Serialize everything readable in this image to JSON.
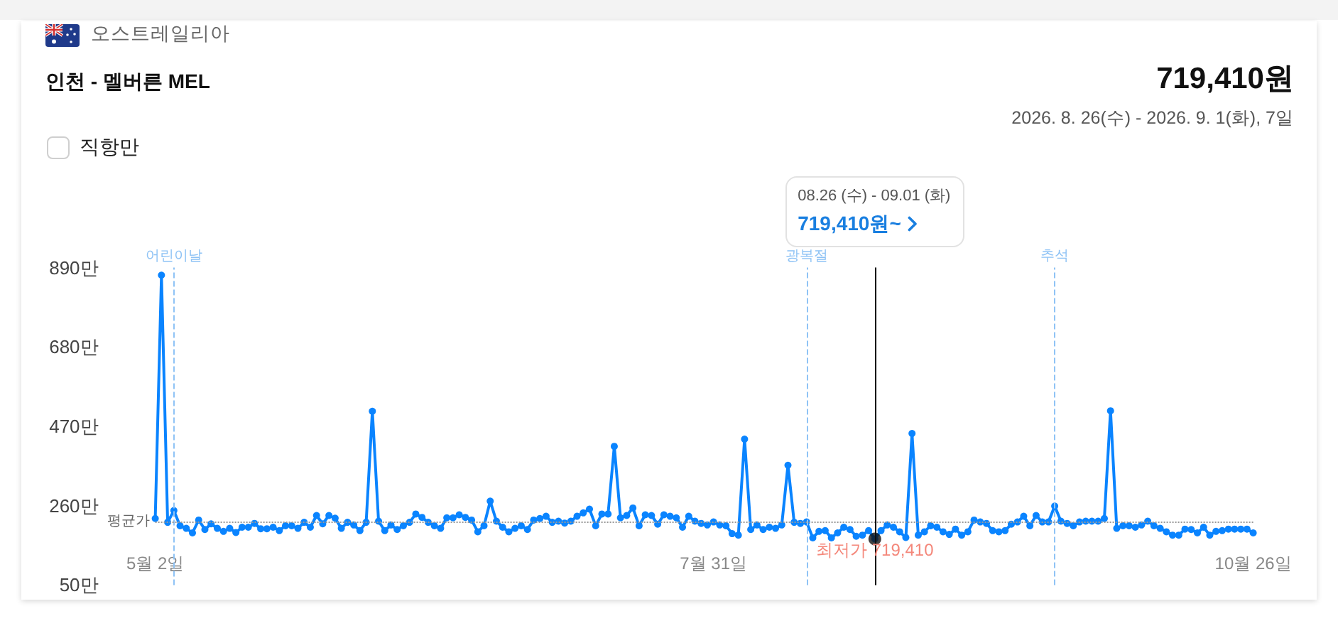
{
  "chart_data": {
    "type": "line",
    "title": "인천 - 멜버른 MEL",
    "subtitle": "2026. 8. 26(수) - 2026. 9. 1(화), 7일",
    "annotations": [
      "오스트레일리아",
      "719,410원",
      "직항만",
      "08.26 (수) - 09.01 (화)",
      "719,410원~",
      "최저가 719,410"
    ],
    "x": [
      "2026-05-02",
      "2026-05-03",
      "2026-05-04",
      "2026-05-05",
      "2026-05-06",
      "2026-05-07",
      "2026-05-08",
      "2026-05-09",
      "2026-05-10",
      "2026-05-11",
      "2026-05-12",
      "2026-05-13",
      "2026-05-14",
      "2026-05-15",
      "2026-05-16",
      "2026-05-17",
      "2026-05-18",
      "2026-05-19",
      "2026-05-20",
      "2026-05-21",
      "2026-05-22",
      "2026-05-23",
      "2026-05-24",
      "2026-05-25",
      "2026-05-26",
      "2026-05-27",
      "2026-05-28",
      "2026-05-29",
      "2026-05-30",
      "2026-05-31",
      "2026-06-01",
      "2026-06-02",
      "2026-06-03",
      "2026-06-04",
      "2026-06-05",
      "2026-06-06",
      "2026-06-07",
      "2026-06-08",
      "2026-06-09",
      "2026-06-10",
      "2026-06-11",
      "2026-06-12",
      "2026-06-13",
      "2026-06-14",
      "2026-06-15",
      "2026-06-16",
      "2026-06-17",
      "2026-06-18",
      "2026-06-19",
      "2026-06-20",
      "2026-06-21",
      "2026-06-22",
      "2026-06-23",
      "2026-06-24",
      "2026-06-25",
      "2026-06-26",
      "2026-06-27",
      "2026-06-28",
      "2026-06-29",
      "2026-06-30",
      "2026-07-01",
      "2026-07-02",
      "2026-07-03",
      "2026-07-04",
      "2026-07-05",
      "2026-07-06",
      "2026-07-07",
      "2026-07-08",
      "2026-07-09",
      "2026-07-10",
      "2026-07-11",
      "2026-07-12",
      "2026-07-13",
      "2026-07-14",
      "2026-07-15",
      "2026-07-16",
      "2026-07-17",
      "2026-07-18",
      "2026-07-19",
      "2026-07-20",
      "2026-07-21",
      "2026-07-22",
      "2026-07-23",
      "2026-07-24",
      "2026-07-25",
      "2026-07-26",
      "2026-07-27",
      "2026-07-28",
      "2026-07-29",
      "2026-07-30",
      "2026-07-31",
      "2026-08-01",
      "2026-08-02",
      "2026-08-03",
      "2026-08-04",
      "2026-08-05",
      "2026-08-06",
      "2026-08-07",
      "2026-08-08",
      "2026-08-09",
      "2026-08-10",
      "2026-08-11",
      "2026-08-12",
      "2026-08-13",
      "2026-08-14",
      "2026-08-15",
      "2026-08-16",
      "2026-08-17",
      "2026-08-18",
      "2026-08-19",
      "2026-08-20",
      "2026-08-21",
      "2026-08-22",
      "2026-08-23",
      "2026-08-24",
      "2026-08-25",
      "2026-08-26",
      "2026-08-27",
      "2026-08-28",
      "2026-08-29",
      "2026-08-30",
      "2026-08-31",
      "2026-09-01",
      "2026-09-02",
      "2026-09-03",
      "2026-09-04",
      "2026-09-05",
      "2026-09-06",
      "2026-09-07",
      "2026-09-08",
      "2026-09-09",
      "2026-09-10",
      "2026-09-11",
      "2026-09-12",
      "2026-09-13",
      "2026-09-14",
      "2026-09-15",
      "2026-09-16",
      "2026-09-17",
      "2026-09-18",
      "2026-09-19",
      "2026-09-20",
      "2026-09-21",
      "2026-09-22",
      "2026-09-23",
      "2026-09-24",
      "2026-09-25",
      "2026-09-26",
      "2026-09-27",
      "2026-09-28",
      "2026-09-29",
      "2026-09-30",
      "2026-10-01",
      "2026-10-02",
      "2026-10-03",
      "2026-10-04",
      "2026-10-05",
      "2026-10-06",
      "2026-10-07",
      "2026-10-08",
      "2026-10-09",
      "2026-10-10",
      "2026-10-11",
      "2026-10-12",
      "2026-10-13",
      "2026-10-14",
      "2026-10-15",
      "2026-10-16",
      "2026-10-17",
      "2026-10-18",
      "2026-10-19",
      "2026-10-20",
      "2026-10-21",
      "2026-10-22",
      "2026-10-23",
      "2026-10-24",
      "2026-10-25",
      "2026-10-26"
    ],
    "series": [
      {
        "color": "#0a84ff",
        "values": [
          226,
          870,
          216,
          247,
          207,
          200,
          188,
          222,
          197,
          212,
          200,
          192,
          200,
          189,
          203,
          203,
          213,
          199,
          199,
          203,
          194,
          207,
          207,
          200,
          216,
          203,
          234,
          212,
          234,
          227,
          200,
          216,
          209,
          194,
          216,
          510,
          219,
          194,
          209,
          197,
          207,
          216,
          238,
          229,
          216,
          207,
          200,
          228,
          228,
          236,
          229,
          222,
          191,
          207,
          272,
          219,
          203,
          191,
          200,
          207,
          197,
          222,
          226,
          232,
          216,
          219,
          214,
          219,
          232,
          241,
          251,
          207,
          238,
          238,
          417,
          228,
          234,
          254,
          207,
          236,
          234,
          211,
          236,
          232,
          228,
          203,
          232,
          219,
          213,
          209,
          217,
          209,
          207,
          186,
          182,
          436,
          197,
          209,
          197,
          203,
          200,
          209,
          367,
          216,
          213,
          217,
          175,
          192,
          194,
          175,
          188,
          203,
          197,
          179,
          182,
          194,
          172,
          194,
          209,
          203,
          191,
          176,
          451,
          182,
          191,
          207,
          203,
          191,
          184,
          198,
          182,
          191,
          222,
          217,
          213,
          194,
          191,
          194,
          211,
          217,
          232,
          207,
          234,
          217,
          217,
          259,
          219,
          213,
          207,
          217,
          219,
          219,
          219,
          226,
          511,
          200,
          207,
          207,
          203,
          209,
          219,
          207,
          200,
          191,
          182,
          182,
          198,
          197,
          188,
          203,
          182,
          192,
          194,
          198,
          198,
          198,
          198,
          188
        ]
      },
      {
        "type": "scatter",
        "color": "#111111",
        "x": [
          "2026-08-26"
        ],
        "values": [
          172
        ]
      }
    ],
    "xlim": [
      "2026-05-02",
      "2026-10-26"
    ],
    "xticks": [
      {
        "value": "2026-05-02",
        "label": "5월 2일"
      },
      {
        "value": "2026-07-31",
        "label": "7월 31일"
      },
      {
        "value": "2026-10-26",
        "label": "10월 26일"
      }
    ],
    "ylim": [
      50,
      890
    ],
    "yticks": [
      {
        "value": 50,
        "label": "50만"
      },
      {
        "value": 260,
        "label": "260만"
      },
      {
        "value": 470,
        "label": "470만"
      },
      {
        "value": 680,
        "label": "680만"
      },
      {
        "value": 890,
        "label": "890만"
      }
    ],
    "ref_lines": [
      {
        "axis": "x",
        "value": "2026-05-05",
        "label": "어린이날",
        "color": "#8fc3f5",
        "line_style": "dashed"
      },
      {
        "axis": "x",
        "value": "2026-08-15",
        "label": "광복절",
        "color": "#8fc3f5",
        "line_style": "dashed"
      },
      {
        "axis": "x",
        "value": "2026-09-24",
        "label": "추석",
        "color": "#8fc3f5",
        "line_style": "dashed"
      },
      {
        "axis": "y",
        "value": 219,
        "label": "평균가",
        "color": "#9a9a9a",
        "line_style": "dotted"
      },
      {
        "axis": "x",
        "value": "2026-08-26",
        "color": "#000000",
        "line_style": "solid"
      }
    ],
    "grid": false,
    "marker": "circle",
    "line_style": "solid"
  }
}
